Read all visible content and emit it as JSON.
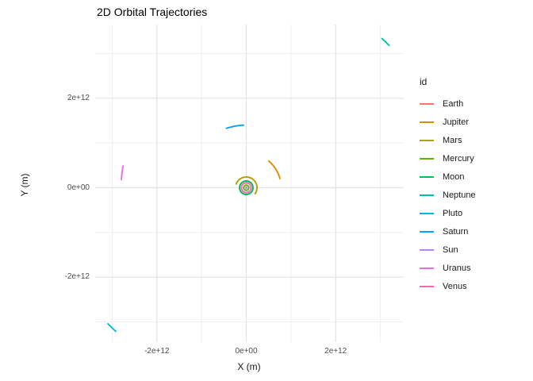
{
  "title": "2D Orbital Trajectories",
  "axes": {
    "x": {
      "label": "X (m)",
      "ticks": [
        {
          "value": -2000000000000.0,
          "label": "-2e+12"
        },
        {
          "value": 0,
          "label": "0e+00"
        },
        {
          "value": 2000000000000.0,
          "label": "2e+12"
        }
      ]
    },
    "y": {
      "label": "Y (m)",
      "ticks": [
        {
          "value": -2000000000000.0,
          "label": "-2e+12"
        },
        {
          "value": 0,
          "label": "0e+00"
        },
        {
          "value": 2000000000000.0,
          "label": "2e+12"
        }
      ]
    }
  },
  "legend": {
    "title": "id",
    "items": [
      {
        "label": "Earth",
        "color": "#F8766D"
      },
      {
        "label": "Jupiter",
        "color": "#DB8E00"
      },
      {
        "label": "Mars",
        "color": "#AEA200"
      },
      {
        "label": "Mercury",
        "color": "#64B200"
      },
      {
        "label": "Moon",
        "color": "#00BD5C"
      },
      {
        "label": "Neptune",
        "color": "#00C1A7"
      },
      {
        "label": "Pluto",
        "color": "#00BADE"
      },
      {
        "label": "Saturn",
        "color": "#00A6FF"
      },
      {
        "label": "Sun",
        "color": "#B385FF"
      },
      {
        "label": "Uranus",
        "color": "#EF67EB"
      },
      {
        "label": "Venus",
        "color": "#FF63B6"
      }
    ]
  },
  "chart_data": {
    "type": "line",
    "title": "2D Orbital Trajectories",
    "xlabel": "X (m)",
    "ylabel": "Y (m)",
    "xlim": [
      -3380000000000.0,
      3520000000000.0
    ],
    "ylim": [
      -3450000000000.0,
      3650000000000.0
    ],
    "x_ticks": [
      "-2e+12",
      "0e+00",
      "2e+12"
    ],
    "y_ticks": [
      "-2e+12",
      "0e+00",
      "2e+12"
    ],
    "x_minor": [
      -3000000000000.0,
      -1000000000000.0,
      1000000000000.0,
      3000000000000.0
    ],
    "y_minor": [
      -3000000000000.0,
      -1000000000000.0,
      1000000000000.0,
      3000000000000.0
    ],
    "grid": true,
    "legend_position": "right",
    "legend_title": "id",
    "grid_major_color": "#e3e3e3",
    "grid_minor_color": "#efefef",
    "series": [
      {
        "name": "Earth",
        "color": "#F8766D",
        "shape": "arc",
        "radius_m": 150000000000.0,
        "start_deg": 0,
        "end_deg": 360
      },
      {
        "name": "Jupiter",
        "color": "#DB8E00",
        "shape": "arc",
        "radius_m": 780000000000.0,
        "start_deg": 15,
        "end_deg": 50
      },
      {
        "name": "Mars",
        "color": "#AEA200",
        "shape": "arc",
        "radius_m": 240000000000.0,
        "start_deg": -35,
        "end_deg": 160
      },
      {
        "name": "Mercury",
        "color": "#64B200",
        "shape": "arc",
        "radius_m": 58000000000.0,
        "start_deg": 0,
        "end_deg": 360
      },
      {
        "name": "Moon",
        "color": "#00BD5C",
        "shape": "arc",
        "radius_m": 150000000000.0,
        "start_deg": 0,
        "end_deg": 360
      },
      {
        "name": "Neptune",
        "color": "#00C1A7",
        "shape": "arc",
        "radius_m": 4510000000000.0,
        "start_deg": 44.9,
        "end_deg": 47.7
      },
      {
        "name": "Pluto",
        "color": "#00BADE",
        "shape": "arc",
        "radius_m": 4340000000000.0,
        "start_deg": 224.5,
        "end_deg": 227.7
      },
      {
        "name": "Saturn",
        "color": "#00A6FF",
        "shape": "arc",
        "radius_m": 1400000000000.0,
        "start_deg": 92.5,
        "end_deg": 108.5
      },
      {
        "name": "Sun",
        "color": "#B385FF",
        "shape": "point",
        "x_m": 0,
        "y_m": 0
      },
      {
        "name": "Uranus",
        "color": "#EF67EB",
        "shape": "arc",
        "radius_m": 2800000000000.0,
        "start_deg": 170,
        "end_deg": 176.3
      },
      {
        "name": "Venus",
        "color": "#FF63B6",
        "shape": "arc",
        "radius_m": 108000000000.0,
        "start_deg": 0,
        "end_deg": 360
      }
    ]
  }
}
